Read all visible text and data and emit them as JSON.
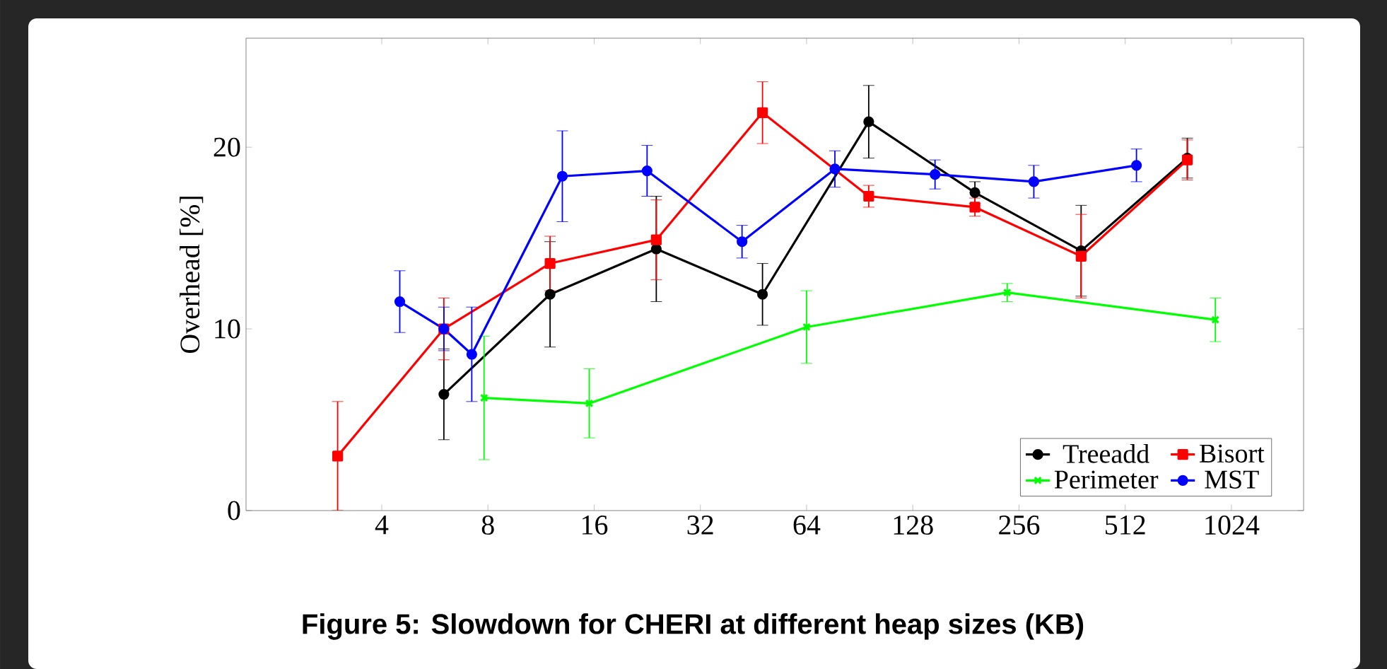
{
  "chart_data": {
    "type": "line",
    "title": "Figure 5: Slowdown for CHERI at different heap sizes (KB)",
    "ylabel": "Overhead [%]",
    "log": "x",
    "xlim": [
      1.65,
      1640
    ],
    "xticks": [
      4,
      8,
      16,
      32,
      64,
      128,
      256,
      512,
      1024
    ],
    "ylim": [
      0,
      26
    ],
    "yticks": [
      0,
      10,
      20
    ],
    "legend": "bottom right",
    "grid": false,
    "line_style": "solid",
    "series": [
      {
        "name": "Treeadd",
        "color": "#000000",
        "marker": "circle",
        "x": [
          6,
          12,
          24,
          48,
          96,
          192,
          384,
          768
        ],
        "values": [
          6.4,
          11.9,
          14.4,
          11.9,
          21.4,
          17.5,
          14.3,
          19.4
        ],
        "errors": [
          2.5,
          2.9,
          2.9,
          1.7,
          2.0,
          0.6,
          2.5,
          1.1
        ]
      },
      {
        "name": "Bisort",
        "color": "#ff0000",
        "marker": "square",
        "x": [
          3,
          6,
          12,
          24,
          48,
          96,
          192,
          384,
          768
        ],
        "values": [
          3.0,
          10.0,
          13.6,
          14.9,
          21.9,
          17.3,
          16.7,
          14.0,
          19.3
        ],
        "errors": [
          3.0,
          1.7,
          1.5,
          2.2,
          1.7,
          0.6,
          0.5,
          2.3,
          1.1
        ]
      },
      {
        "name": "Perimeter",
        "color": "#00ff00",
        "marker": "cross",
        "x": [
          7.8,
          15.5,
          64,
          237,
          922
        ],
        "values": [
          6.2,
          5.9,
          10.1,
          12.0,
          10.5
        ],
        "errors": [
          3.4,
          1.9,
          2.0,
          0.5,
          1.2
        ]
      },
      {
        "name": "MST",
        "color": "#0000ff",
        "marker": "circle",
        "x": [
          4.5,
          6,
          7.2,
          13,
          22.6,
          42,
          77,
          148,
          282,
          551
        ],
        "values": [
          11.5,
          10.0,
          8.6,
          18.4,
          18.7,
          14.8,
          18.8,
          18.5,
          18.1,
          19.0
        ],
        "errors": [
          1.7,
          1.2,
          2.6,
          2.5,
          1.4,
          0.9,
          1.0,
          0.8,
          0.9,
          0.9
        ]
      }
    ]
  }
}
